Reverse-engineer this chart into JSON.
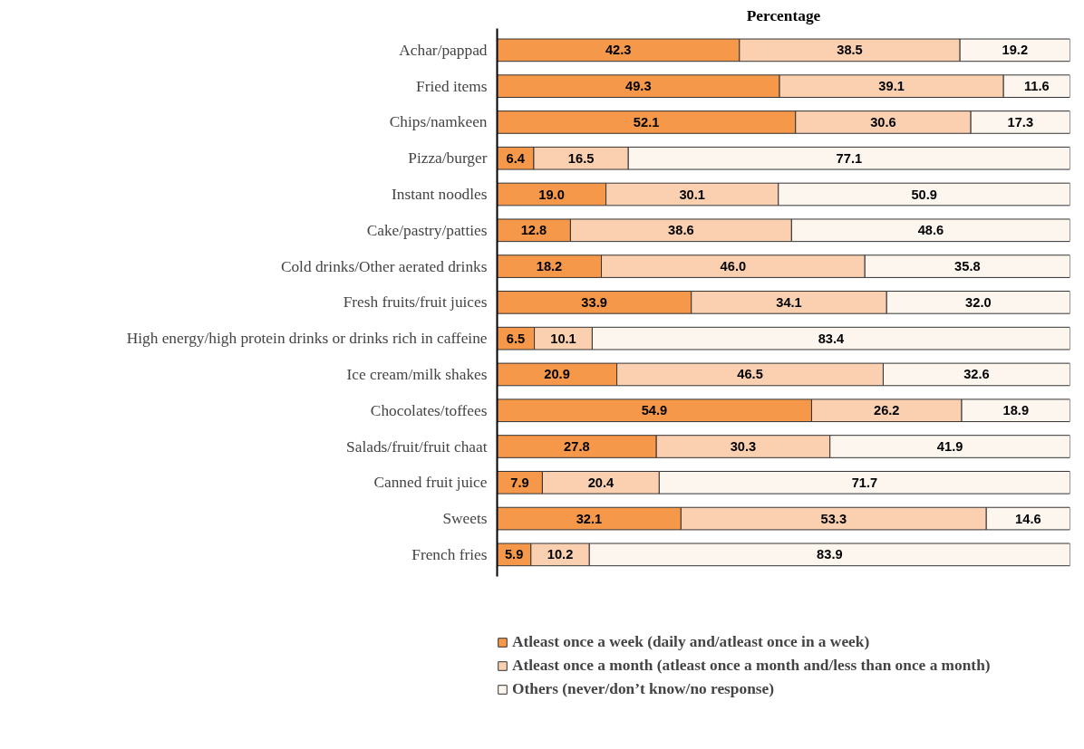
{
  "chart_data": {
    "type": "bar",
    "orientation": "horizontal",
    "stacked": true,
    "xlabel": "Percentage",
    "categories": [
      "Achar/pappad",
      "Fried items",
      "Chips/namkeen",
      "Pizza/burger",
      "Instant noodles",
      "Cake/pastry/patties",
      "Cold drinks/Other aerated drinks",
      "Fresh fruits/fruit juices",
      "High energy/high protein drinks or drinks rich in caffeine",
      "Ice cream/milk shakes",
      "Chocolates/toffees",
      "Salads/fruit/fruit chaat",
      "Canned fruit juice",
      "Sweets",
      "French fries"
    ],
    "series": [
      {
        "name": "Atleast once a week (daily and/atleast once in a week)",
        "color": "#f5984a",
        "values": [
          42.3,
          49.3,
          52.1,
          6.4,
          19.0,
          12.8,
          18.2,
          33.9,
          6.5,
          20.9,
          54.9,
          27.8,
          7.9,
          32.1,
          5.9
        ],
        "value_labels": [
          "42.3",
          "49.3",
          "52.1",
          "6.4",
          "19.0",
          "12.8",
          "18.2",
          "33.9",
          "6.5",
          "20.9",
          "54.9",
          "27.8",
          "7.9",
          "32.1",
          "5.9"
        ]
      },
      {
        "name": "Atleast once a month (atleast once a month and/less than once a month)",
        "color": "#fbd0b0",
        "values": [
          38.5,
          39.1,
          30.6,
          16.5,
          30.1,
          38.6,
          46.0,
          34.1,
          10.1,
          46.5,
          26.2,
          30.3,
          20.4,
          53.3,
          10.2
        ],
        "value_labels": [
          "38.5",
          "39.1",
          "30.6",
          "16.5",
          "30.1",
          "38.6",
          "46.0",
          "34.1",
          "10.1",
          "46.5",
          "26.2",
          "30.3",
          "20.4",
          "53.3",
          "10.2"
        ]
      },
      {
        "name": "Others (never/don’t know/no response)",
        "color": "#fdf6ef",
        "values": [
          19.2,
          11.6,
          17.3,
          77.1,
          50.9,
          48.6,
          35.8,
          32.0,
          83.4,
          32.6,
          18.9,
          41.9,
          71.7,
          14.6,
          83.9
        ],
        "value_labels": [
          "19.2",
          "11.6",
          "17.3",
          "77.1",
          "50.9",
          "48.6",
          "35.8",
          "32.0",
          "83.4",
          "32.6",
          "18.9",
          "41.9",
          "71.7",
          "14.6",
          "83.9"
        ]
      }
    ],
    "legend": "bottom",
    "grid": false,
    "tick_labels": "y"
  }
}
